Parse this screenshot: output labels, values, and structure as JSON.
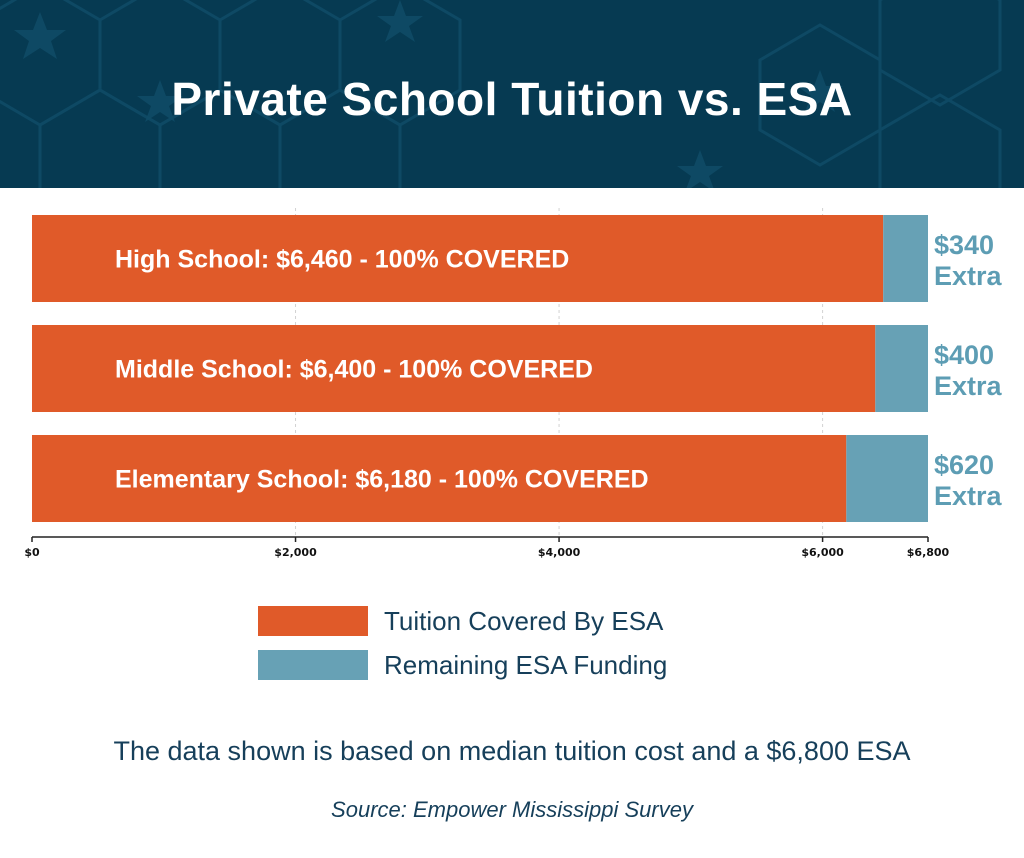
{
  "title": "Private School Tuition vs. ESA",
  "colors": {
    "header_bg": "#063a52",
    "covered": "#e05a29",
    "remaining": "#67a1b5",
    "extra_text": "#5d9db4",
    "text_dark": "#163f5a"
  },
  "chart_data": {
    "type": "bar",
    "orientation": "horizontal",
    "stacked": true,
    "xlim": [
      0,
      6800
    ],
    "x_ticks": [
      0,
      2000,
      4000,
      6000,
      6800
    ],
    "x_tick_labels": [
      "$0",
      "$2,000",
      "$4,000",
      "$6,000",
      "$6,800"
    ],
    "grid": true,
    "categories": [
      "High School",
      "Middle School",
      "Elementary School"
    ],
    "series": [
      {
        "name": "Tuition Covered By ESA",
        "values": [
          6460,
          6400,
          6180
        ]
      },
      {
        "name": "Remaining ESA Funding",
        "values": [
          340,
          400,
          620
        ]
      }
    ],
    "bar_labels": [
      "High School: $6,460 - 100% COVERED",
      "Middle School: $6,400 - 100% COVERED",
      "Elementary School: $6,180 - 100% COVERED"
    ],
    "extra_labels": [
      [
        "$340",
        "Extra"
      ],
      [
        "$400",
        "Extra"
      ],
      [
        "$620",
        "Extra"
      ]
    ]
  },
  "legend": [
    {
      "label": "Tuition Covered By ESA",
      "color": "#e05a29"
    },
    {
      "label": "Remaining ESA Funding",
      "color": "#67a1b5"
    }
  ],
  "note": "The data shown is based on median tuition cost and a $6,800 ESA",
  "source": "Source: Empower Mississippi Survey"
}
